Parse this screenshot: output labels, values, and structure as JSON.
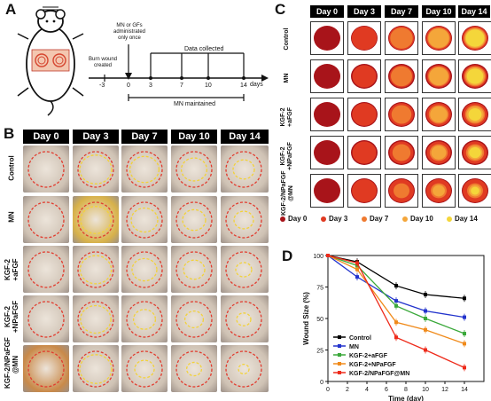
{
  "panels": {
    "a": "A",
    "b": "B",
    "c": "C",
    "d": "D"
  },
  "timeline": {
    "burn": "Burn wound\ncreated",
    "admin": "MN or GFs\nadministrated\nonly once",
    "collected": "Data collected",
    "maintained": "MN maintained",
    "unit": "days",
    "ticks": [
      "-3",
      "0",
      "3",
      "7",
      "10",
      "14"
    ]
  },
  "days": [
    "Day 0",
    "Day 3",
    "Day 7",
    "Day 10",
    "Day 14"
  ],
  "groups": [
    {
      "l1": "Control",
      "l2": ""
    },
    {
      "l1": "MN",
      "l2": ""
    },
    {
      "l1": "KGF-2",
      "l2": "+aFGF"
    },
    {
      "l1": "KGF-2",
      "l2": "+NPaFGF"
    },
    {
      "l1": "KGF-2/NPaFGF",
      "l2": "@MN"
    }
  ],
  "trace_legend": [
    {
      "label": "Day 0",
      "color": "#a8141a"
    },
    {
      "label": "Day 3",
      "color": "#e03a22"
    },
    {
      "label": "Day 7",
      "color": "#ef7a30"
    },
    {
      "label": "Day 10",
      "color": "#f4a63a"
    },
    {
      "label": "Day 14",
      "color": "#f4d63a"
    }
  ],
  "chart_data": {
    "type": "line",
    "xlabel": "Time (day)",
    "ylabel": "Wound Size (%)",
    "xlim": [
      0,
      16
    ],
    "ylim": [
      0,
      100
    ],
    "xticks": [
      "0",
      "2",
      "4",
      "6",
      "8",
      "10",
      "12",
      "14"
    ],
    "yticks": [
      "0",
      "25",
      "50",
      "75",
      "100"
    ],
    "x": [
      0,
      3,
      7,
      10,
      14
    ],
    "series": [
      {
        "name": "Control",
        "color": "#000000",
        "values": [
          100,
          95,
          76,
          69,
          66
        ]
      },
      {
        "name": "MN",
        "color": "#2233cc",
        "values": [
          100,
          83,
          64,
          56,
          51
        ]
      },
      {
        "name": "KGF-2+aFGF",
        "color": "#3aa83a",
        "values": [
          100,
          92,
          60,
          50,
          38
        ]
      },
      {
        "name": "KGF-2+NPaFGF",
        "color": "#f08a1a",
        "values": [
          100,
          89,
          47,
          41,
          30
        ]
      },
      {
        "name": "KGF-2/NPaFGF@MN",
        "color": "#ee2a1a",
        "values": [
          100,
          94,
          35,
          25,
          11
        ]
      }
    ],
    "legend": "lower-left"
  }
}
